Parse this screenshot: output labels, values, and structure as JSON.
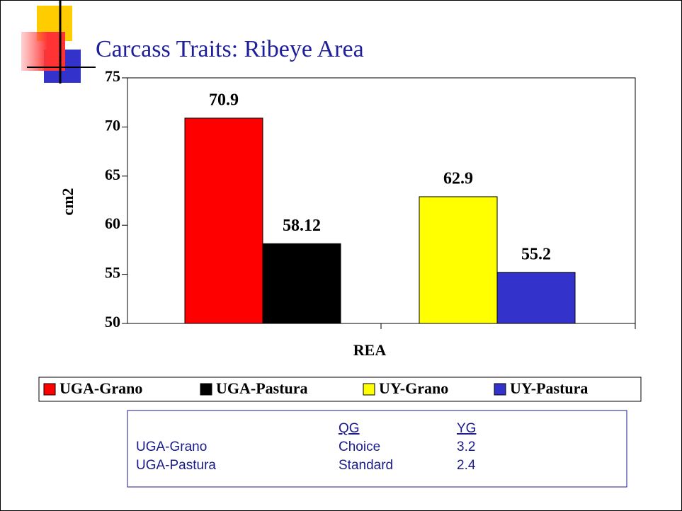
{
  "chart_data": {
    "type": "bar",
    "title": "Carcass Traits: Ribeye Area",
    "categories": [
      "REA"
    ],
    "y_label": "cm2",
    "series": [
      {
        "name": "UGA-Grano",
        "color": "#ff0000",
        "values": [
          70.9
        ]
      },
      {
        "name": "UGA-Pastura",
        "color": "#000000",
        "values": [
          58.12
        ]
      },
      {
        "name": "UY-Grano",
        "color": "#ffff00",
        "values": [
          62.9
        ]
      },
      {
        "name": "UY-Pastura",
        "color": "#3333cc",
        "values": [
          55.2
        ]
      }
    ],
    "ylim": [
      50,
      75
    ],
    "yticks": [
      50,
      55,
      60,
      65,
      70,
      75
    ]
  },
  "table": {
    "columns": [
      "QG",
      "YG"
    ],
    "rows": [
      [
        "UGA-Grano",
        "Choice",
        3.2
      ],
      [
        "UGA-Pastura",
        "Standard",
        2.4
      ]
    ]
  }
}
